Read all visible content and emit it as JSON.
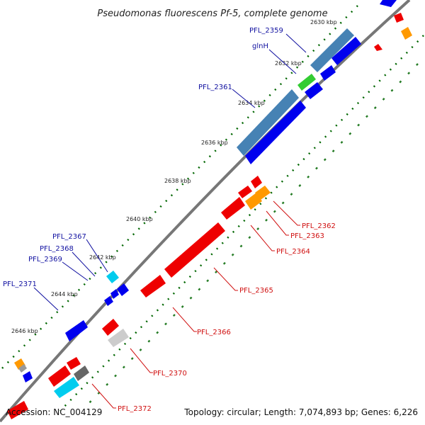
{
  "title": "Pseudomonas fluorescens Pf-5, complete genome",
  "footer": {
    "accession": "Accession: NC_004129",
    "summary": "Topology: circular; Length: 7,074,893 bp; Genes: 6,226"
  },
  "ticks": [
    "2630 kbp",
    "2632 kbp",
    "2634 kbp",
    "2636 kbp",
    "2638 kbp",
    "2640 kbp",
    "2642 kbp",
    "2644 kbp",
    "2646 kbp"
  ],
  "genes_forward": [
    "PFL_2359",
    "glnH",
    "PFL_2361",
    "PFL_2367",
    "PFL_2368",
    "PFL_2369",
    "PFL_2371"
  ],
  "genes_reverse": [
    "PFL_2362",
    "PFL_2363",
    "PFL_2364",
    "PFL_2365",
    "PFL_2366",
    "PFL_2370",
    "PFL_2372"
  ],
  "colors": {
    "forward_cds": "#0000ee",
    "reverse_cds": "#ee0000",
    "steelblue_feature": "#4682b4",
    "green_feature": "#33cc33",
    "orange_feature": "#ff9900",
    "cyan_feature": "#00ccee",
    "gray_feature": "#999999",
    "backbone": "#777777",
    "dotted_track": "#006600"
  }
}
